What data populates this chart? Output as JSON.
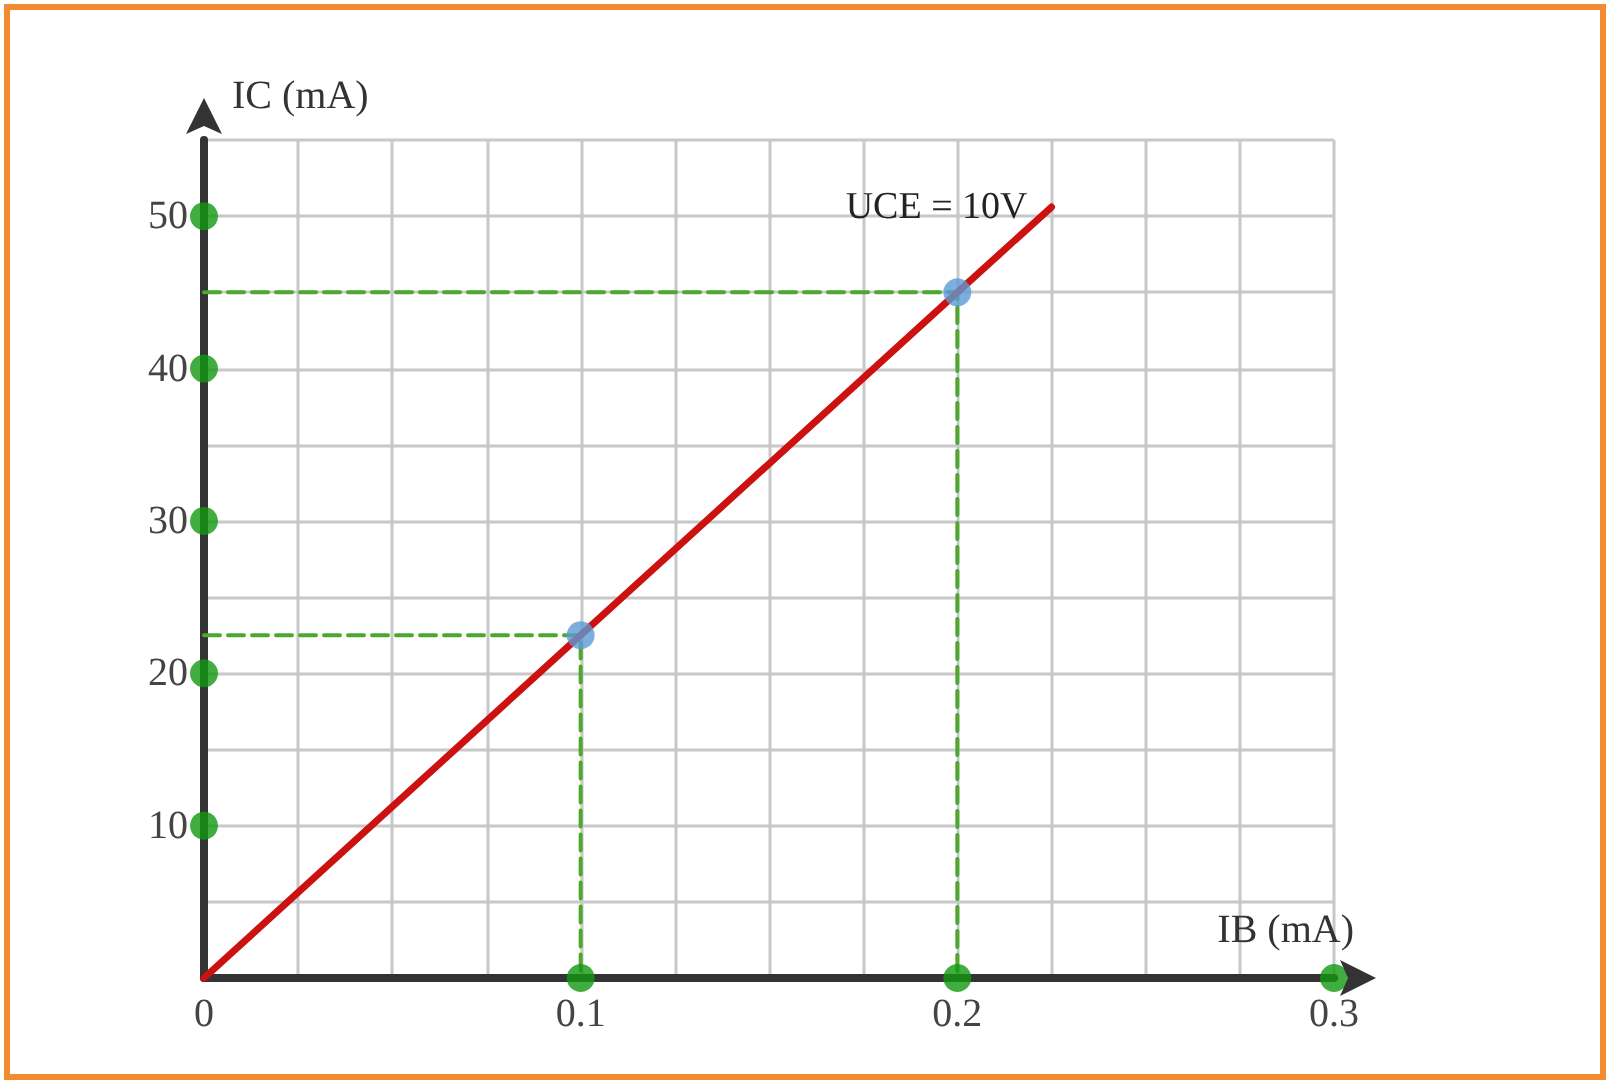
{
  "chart_data": {
    "type": "line",
    "xlabel": "IB (mA)",
    "ylabel": "IC (mA)",
    "xlim": [
      0,
      0.3
    ],
    "ylim": [
      0,
      55
    ],
    "xticks": [
      0,
      {
        "value": 0.025,
        "label": null
      },
      {
        "value": 0.05,
        "label": null
      },
      {
        "value": 0.075,
        "label": null
      },
      0.1,
      {
        "value": 0.125,
        "label": null
      },
      {
        "value": 0.15,
        "label": null
      },
      {
        "value": 0.175,
        "label": null
      },
      0.2,
      {
        "value": 0.225,
        "label": null
      },
      {
        "value": 0.25,
        "label": null
      },
      {
        "value": 0.275,
        "label": null
      },
      0.3
    ],
    "yticks": [
      {
        "value": 5,
        "label": null
      },
      10,
      {
        "value": 15,
        "label": null
      },
      20,
      {
        "value": 25,
        "label": null
      },
      30,
      {
        "value": 35,
        "label": null
      },
      40,
      {
        "value": 45,
        "label": null
      },
      50,
      {
        "value": 55,
        "label": null
      }
    ],
    "grid": true,
    "series": [
      {
        "type": "line",
        "color": "#4ea72e",
        "line_style": "dashed",
        "marker": "none",
        "x": [
          0,
          0.1,
          0.1
        ],
        "values": [
          22.5,
          22.5,
          0
        ]
      },
      {
        "type": "line",
        "color": "#4ea72e",
        "line_style": "dashed",
        "marker": "none",
        "x": [
          0,
          0.2,
          0.2
        ],
        "values": [
          45,
          45,
          0
        ]
      },
      {
        "type": "line",
        "name": "UCE = 10V",
        "color": "#cc1111",
        "line_style": "solid",
        "marker": "none",
        "x": [
          0,
          0.1,
          0.2,
          0.225
        ],
        "values": [
          0,
          22.5,
          45,
          50.6
        ]
      },
      {
        "type": "scatter",
        "color": "#5b9bd5",
        "marker": "circle",
        "x": [
          0.1,
          0.2
        ],
        "values": [
          22.5,
          45
        ]
      },
      {
        "type": "scatter",
        "color": "#119911",
        "marker": "circle",
        "x": [
          0.1,
          0.2,
          0.3,
          0,
          0,
          0,
          0,
          0
        ],
        "values": [
          0,
          0,
          0,
          10,
          20,
          30,
          40,
          50
        ]
      }
    ]
  }
}
